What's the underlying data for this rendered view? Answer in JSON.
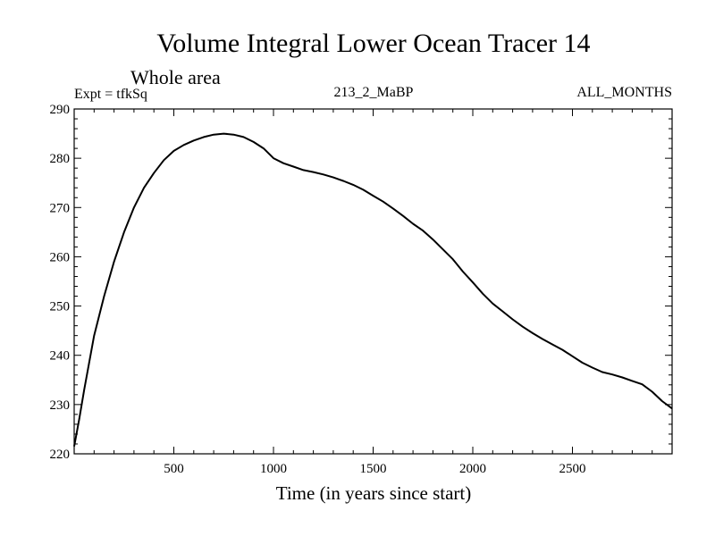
{
  "chart_data": {
    "type": "line",
    "title": "Volume Integral Lower Ocean Tracer 14",
    "subtitle": "Whole area",
    "expt_label": "Expt = tfkSq",
    "center_label": "213_2_MaBP",
    "right_label": "ALL_MONTHS",
    "xlabel": "Time (in years since start)",
    "ylabel": "",
    "xlim": [
      0,
      3000
    ],
    "ylim": [
      220,
      290
    ],
    "xticks": [
      500,
      1000,
      1500,
      2000,
      2500
    ],
    "xtick_labels": [
      "500",
      "1000",
      "1500",
      "2000",
      "2500"
    ],
    "yticks": [
      220,
      230,
      240,
      250,
      260,
      270,
      280,
      290
    ],
    "ytick_labels": [
      "220",
      "230",
      "240",
      "250",
      "260",
      "270",
      "280",
      "290"
    ],
    "grid": false,
    "series": [
      {
        "name": "Lower Ocean Tracer 14",
        "color": "#000000",
        "x": [
          0,
          25,
          50,
          100,
          150,
          200,
          250,
          300,
          350,
          400,
          450,
          500,
          550,
          600,
          650,
          700,
          750,
          800,
          850,
          900,
          950,
          1000,
          1050,
          1100,
          1150,
          1200,
          1250,
          1300,
          1350,
          1400,
          1450,
          1500,
          1550,
          1600,
          1650,
          1700,
          1750,
          1800,
          1850,
          1900,
          1950,
          2000,
          2050,
          2100,
          2150,
          2200,
          2250,
          2300,
          2350,
          2400,
          2450,
          2500,
          2550,
          2600,
          2650,
          2700,
          2750,
          2800,
          2850,
          2900,
          2950,
          3000
        ],
        "y": [
          221.5,
          227,
          233,
          244,
          252,
          259,
          265,
          270,
          274,
          277,
          279.6,
          281.5,
          282.7,
          283.6,
          284.3,
          284.8,
          285,
          284.8,
          284.3,
          283.3,
          282,
          280,
          279,
          278.3,
          277.6,
          277.2,
          276.7,
          276.1,
          275.4,
          274.6,
          273.6,
          272.4,
          271.2,
          269.8,
          268.3,
          266.7,
          265.3,
          263.5,
          261.5,
          259.5,
          257,
          254.8,
          252.5,
          250.5,
          248.9,
          247.3,
          245.8,
          244.5,
          243.3,
          242.2,
          241.1,
          239.8,
          238.5,
          237.5,
          236.6,
          236.1,
          235.5,
          234.8,
          234.1,
          232.6,
          230.7,
          229.2
        ]
      }
    ]
  }
}
